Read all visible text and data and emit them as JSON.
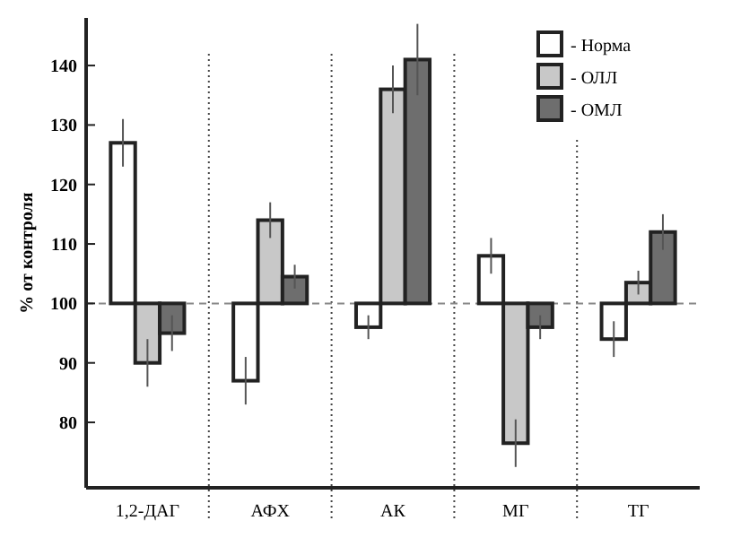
{
  "chart_data": {
    "type": "bar",
    "ylabel": "% от контроля",
    "categories": [
      "1,2-ДАГ",
      "АФХ",
      "АК",
      "МГ",
      "ТГ"
    ],
    "series": [
      {
        "name": "- Норма",
        "color": "#ffffff",
        "base": [
          100,
          100,
          100,
          100,
          100
        ],
        "values": [
          27,
          -13,
          -4,
          8,
          -6
        ],
        "errors": [
          4,
          4,
          2,
          3,
          3
        ]
      },
      {
        "name": "- ОЛЛ",
        "color": "#c8c8c8",
        "base": [
          100,
          100,
          100,
          100,
          100
        ],
        "values": [
          -10,
          14,
          36,
          -23.5,
          3.5
        ],
        "errors": [
          4,
          3,
          4,
          4,
          2
        ]
      },
      {
        "name": "- ОМЛ",
        "color": "#6e6e6e",
        "base": [
          100,
          100,
          100,
          100,
          100
        ],
        "values": [
          -5,
          4.5,
          41,
          -4,
          12
        ],
        "errors": [
          3,
          2,
          6,
          2,
          3
        ]
      }
    ],
    "ylim": [
      69,
      148
    ],
    "yticks": [
      80,
      90,
      100,
      110,
      120,
      130,
      140
    ],
    "ref_lines": [
      {
        "axis": "y",
        "value": 100,
        "line_style": "dashed",
        "color": "#888888"
      }
    ],
    "legend": "top right",
    "grid": false
  }
}
